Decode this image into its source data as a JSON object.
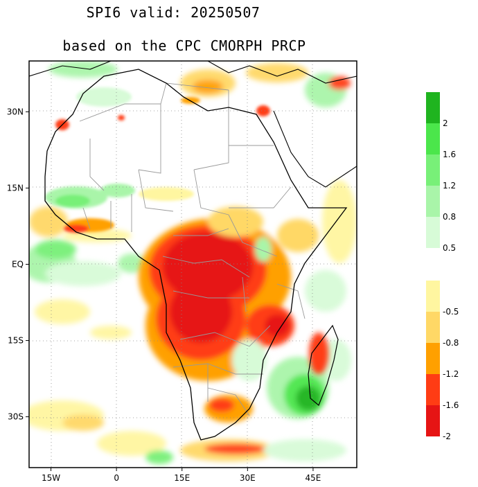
{
  "title": "SPI6   valid: 20250507",
  "subtitle": "based on the CPC CMORPH PRCP",
  "map": {
    "lon_range": [
      -20,
      55
    ],
    "lat_range": [
      -40,
      40
    ],
    "x_ticks": [
      {
        "lon": -15,
        "label": "15W"
      },
      {
        "lon": 0,
        "label": "0"
      },
      {
        "lon": 15,
        "label": "15E"
      },
      {
        "lon": 30,
        "label": "30E"
      },
      {
        "lon": 45,
        "label": "45E"
      }
    ],
    "y_ticks": [
      {
        "lat": 30,
        "label": "30N"
      },
      {
        "lat": 15,
        "label": "15N"
      },
      {
        "lat": 0,
        "label": "EQ"
      },
      {
        "lat": -15,
        "label": "15S"
      },
      {
        "lat": -30,
        "label": "30S"
      }
    ],
    "grid": "dotted"
  },
  "legend_wet": {
    "colors": [
      "#1fb41f",
      "#4be64b",
      "#78f078",
      "#a9f5a9",
      "#d7fbd7"
    ],
    "labels": [
      "2",
      "1.6",
      "1.2",
      "0.8",
      "0.5"
    ]
  },
  "legend_dry": {
    "colors": [
      "#fff6a0",
      "#ffd866",
      "#ffa000",
      "#ff3c14",
      "#e61414"
    ],
    "labels": [
      "-0.5",
      "-0.8",
      "-1.2",
      "-1.6",
      "-2"
    ]
  }
}
